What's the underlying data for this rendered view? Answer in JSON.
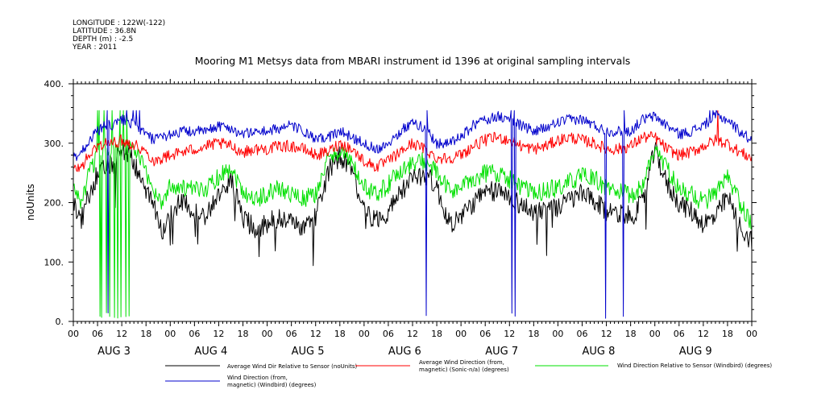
{
  "header": {
    "meta_lines": [
      "LONGITUDE : 122W(-122)",
      "LATITUDE : 36.8N",
      "DEPTH (m) : -2.5",
      "YEAR : 2011"
    ]
  },
  "chart_data": {
    "type": "line",
    "title": "Mooring M1 Metsys data from MBARI instrument id 1396 at original sampling intervals",
    "ylabel": "noUnits",
    "xlabel": "",
    "ylim": [
      0,
      400
    ],
    "yticks": [
      0,
      100,
      200,
      300,
      400
    ],
    "ytick_labels": [
      "0.",
      "100.",
      "200.",
      "300.",
      "400."
    ],
    "x_range_hours": [
      0,
      168
    ],
    "hour_tick_labels": [
      "00",
      "06",
      "12",
      "18",
      "00",
      "06",
      "12",
      "18",
      "00",
      "06",
      "12",
      "18",
      "00",
      "06",
      "12",
      "18",
      "00",
      "06",
      "12",
      "18",
      "00",
      "06",
      "12",
      "18",
      "00",
      "06",
      "12",
      "18",
      "00"
    ],
    "day_labels": [
      "AUG  3",
      "AUG  4",
      "AUG  5",
      "AUG  6",
      "AUG  7",
      "AUG  8",
      "AUG  9"
    ],
    "grid": false,
    "legend_placement": "bottom",
    "series": [
      {
        "name": "Average Wind Dir Relative to Sensor (noUnits)",
        "color": "#000000",
        "x": [
          0,
          2,
          4,
          6,
          8,
          10,
          12,
          14,
          16,
          18,
          20,
          22,
          24,
          27,
          30,
          33,
          36,
          39,
          42,
          45,
          48,
          51,
          54,
          57,
          60,
          63,
          66,
          69,
          72,
          75,
          78,
          81,
          84,
          87,
          90,
          93,
          96,
          99,
          102,
          105,
          108,
          111,
          114,
          117,
          120,
          123,
          126,
          129,
          132,
          135,
          138,
          141,
          144,
          147,
          150,
          153,
          156,
          159,
          162,
          165,
          168
        ],
        "values": [
          200,
          170,
          215,
          250,
          255,
          265,
          290,
          285,
          250,
          220,
          190,
          150,
          185,
          200,
          185,
          180,
          210,
          240,
          175,
          155,
          165,
          175,
          165,
          160,
          175,
          250,
          280,
          250,
          185,
          170,
          185,
          215,
          240,
          250,
          225,
          165,
          175,
          200,
          215,
          220,
          210,
          195,
          185,
          190,
          190,
          205,
          215,
          200,
          185,
          185,
          175,
          200,
          290,
          230,
          200,
          185,
          165,
          175,
          210,
          160,
          135
        ]
      },
      {
        "name": "Average Wind Direction (from, magnetic) (Sonic-n/a) (degrees)",
        "color": "#ff0000",
        "x": [
          0,
          2,
          4,
          6,
          8,
          10,
          12,
          14,
          16,
          18,
          20,
          22,
          24,
          27,
          30,
          33,
          36,
          39,
          42,
          45,
          48,
          51,
          54,
          57,
          60,
          63,
          66,
          69,
          72,
          75,
          78,
          81,
          84,
          87,
          90,
          93,
          96,
          99,
          102,
          105,
          108,
          111,
          114,
          117,
          120,
          123,
          126,
          129,
          132,
          135,
          138,
          141,
          144,
          147,
          150,
          153,
          156,
          159,
          162,
          165,
          168
        ],
        "values": [
          255,
          260,
          280,
          295,
          300,
          300,
          305,
          300,
          295,
          285,
          270,
          275,
          280,
          285,
          290,
          295,
          300,
          295,
          285,
          290,
          290,
          295,
          295,
          290,
          280,
          285,
          300,
          290,
          270,
          260,
          270,
          285,
          300,
          290,
          275,
          275,
          280,
          295,
          305,
          310,
          305,
          295,
          290,
          295,
          305,
          310,
          305,
          300,
          290,
          290,
          295,
          310,
          310,
          290,
          280,
          285,
          295,
          305,
          300,
          285,
          275
        ]
      },
      {
        "name": "Wind Direction Relative to Sensor (Windbird) (degrees)",
        "color": "#00e000",
        "x": [
          0,
          2,
          4,
          6,
          8,
          10,
          12,
          14,
          16,
          18,
          20,
          22,
          24,
          27,
          30,
          33,
          36,
          39,
          42,
          45,
          48,
          51,
          54,
          57,
          60,
          63,
          66,
          69,
          72,
          75,
          78,
          81,
          84,
          87,
          90,
          93,
          96,
          99,
          102,
          105,
          108,
          111,
          114,
          117,
          120,
          123,
          126,
          129,
          132,
          135,
          138,
          141,
          144,
          147,
          150,
          153,
          156,
          159,
          162,
          165,
          168
        ],
        "values": [
          225,
          200,
          250,
          280,
          290,
          295,
          300,
          295,
          280,
          250,
          220,
          200,
          230,
          225,
          220,
          225,
          245,
          260,
          220,
          205,
          215,
          225,
          215,
          205,
          215,
          270,
          290,
          265,
          225,
          215,
          230,
          255,
          265,
          270,
          250,
          220,
          225,
          240,
          250,
          250,
          240,
          225,
          215,
          220,
          225,
          235,
          245,
          240,
          225,
          220,
          210,
          230,
          290,
          260,
          220,
          215,
          200,
          215,
          240,
          200,
          165
        ]
      },
      {
        "name": "Wind Direction (from, magnetic) (Windbird) (degrees)",
        "color": "#0000cc",
        "x": [
          0,
          2,
          4,
          6,
          8,
          10,
          12,
          14,
          16,
          18,
          20,
          22,
          24,
          27,
          30,
          33,
          36,
          39,
          42,
          45,
          48,
          51,
          54,
          57,
          60,
          63,
          66,
          69,
          72,
          75,
          78,
          81,
          84,
          87,
          90,
          93,
          96,
          99,
          102,
          105,
          108,
          111,
          114,
          117,
          120,
          123,
          126,
          129,
          132,
          135,
          138,
          141,
          144,
          147,
          150,
          153,
          156,
          159,
          162,
          165,
          168
        ],
        "values": [
          275,
          285,
          305,
          320,
          330,
          330,
          340,
          335,
          325,
          315,
          305,
          310,
          315,
          320,
          320,
          320,
          330,
          325,
          315,
          320,
          320,
          325,
          330,
          320,
          305,
          310,
          320,
          310,
          300,
          290,
          300,
          320,
          335,
          325,
          300,
          300,
          310,
          330,
          340,
          345,
          340,
          330,
          320,
          325,
          335,
          340,
          340,
          330,
          320,
          320,
          320,
          340,
          345,
          330,
          315,
          320,
          330,
          345,
          340,
          320,
          305
        ]
      }
    ],
    "dropout_hours": {
      "green": [
        6.0,
        6.5,
        7.0,
        7.6,
        8.2,
        9.0,
        9.6,
        10.2,
        11.0,
        11.7,
        12.4,
        13.1,
        13.8
      ],
      "blue": [
        8.5,
        13.2,
        14.8,
        15.6,
        16.4,
        87.5,
        108.5,
        109.3,
        131.8,
        136.3,
        157.6,
        158.4,
        159.2
      ],
      "red": [
        159.6
      ]
    }
  }
}
